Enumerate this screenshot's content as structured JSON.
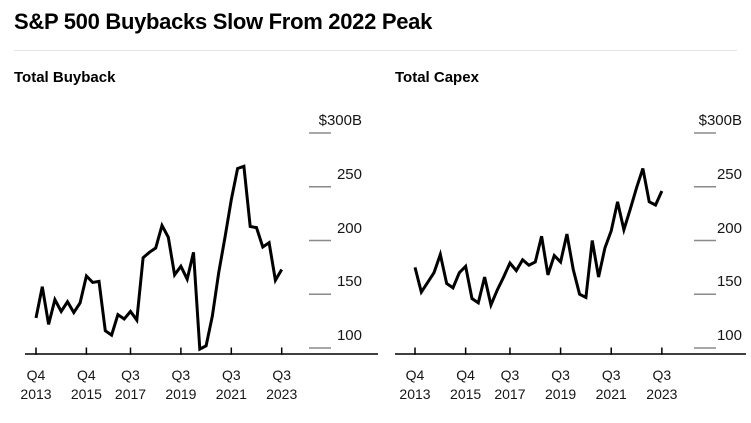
{
  "title": "S&P 500 Buybacks Slow From 2022 Peak",
  "background_color": "#ffffff",
  "line_color": "#000000",
  "axis_color": "#000000",
  "y_tick_dash_color": "#8a8a8a",
  "chart_data": [
    {
      "type": "line",
      "title": "Total Buyback",
      "unit": "billions USD",
      "ylim": [
        90,
        315
      ],
      "grid": false,
      "legend": "none",
      "y_axis_side": "right",
      "y_ticks": [
        {
          "value": 300,
          "label": "$300B"
        },
        {
          "value": 250,
          "label": "250"
        },
        {
          "value": 200,
          "label": "200"
        },
        {
          "value": 150,
          "label": "150"
        },
        {
          "value": 100,
          "label": "100"
        }
      ],
      "x_ticks": [
        {
          "index": 0,
          "quarter": "Q4",
          "year": "2013"
        },
        {
          "index": 8,
          "quarter": "Q4",
          "year": "2015"
        },
        {
          "index": 15,
          "quarter": "Q3",
          "year": "2017"
        },
        {
          "index": 23,
          "quarter": "Q3",
          "year": "2019"
        },
        {
          "index": 31,
          "quarter": "Q3",
          "year": "2021"
        },
        {
          "index": 39,
          "quarter": "Q3",
          "year": "2023"
        }
      ],
      "x": [
        "Q4 2013",
        "Q1 2014",
        "Q2 2014",
        "Q3 2014",
        "Q4 2014",
        "Q1 2015",
        "Q2 2015",
        "Q3 2015",
        "Q4 2015",
        "Q1 2016",
        "Q2 2016",
        "Q3 2016",
        "Q4 2016",
        "Q1 2017",
        "Q2 2017",
        "Q3 2017",
        "Q4 2017",
        "Q1 2018",
        "Q2 2018",
        "Q3 2018",
        "Q4 2018",
        "Q1 2019",
        "Q2 2019",
        "Q3 2019",
        "Q4 2019",
        "Q1 2020",
        "Q2 2020",
        "Q3 2020",
        "Q4 2020",
        "Q1 2021",
        "Q2 2021",
        "Q3 2021",
        "Q4 2021",
        "Q1 2022",
        "Q2 2022",
        "Q3 2022",
        "Q4 2022",
        "Q1 2023",
        "Q2 2023",
        "Q3 2023"
      ],
      "values": [
        128,
        157,
        122,
        145,
        134,
        143,
        133,
        142,
        167,
        161,
        162,
        116,
        112,
        131,
        127,
        134,
        126,
        184,
        189,
        193,
        214,
        203,
        168,
        176,
        164,
        189,
        99,
        102,
        130,
        170,
        203,
        238,
        267,
        269,
        213,
        212,
        194,
        198,
        163,
        173
      ]
    },
    {
      "type": "line",
      "title": "Total Capex",
      "unit": "billions USD",
      "ylim": [
        90,
        315
      ],
      "grid": false,
      "legend": "none",
      "y_axis_side": "right",
      "y_ticks": [
        {
          "value": 300,
          "label": "$300B"
        },
        {
          "value": 250,
          "label": "250"
        },
        {
          "value": 200,
          "label": "200"
        },
        {
          "value": 150,
          "label": "150"
        },
        {
          "value": 100,
          "label": "100"
        }
      ],
      "x_ticks": [
        {
          "index": 0,
          "quarter": "Q4",
          "year": "2013"
        },
        {
          "index": 8,
          "quarter": "Q4",
          "year": "2015"
        },
        {
          "index": 15,
          "quarter": "Q3",
          "year": "2017"
        },
        {
          "index": 23,
          "quarter": "Q3",
          "year": "2019"
        },
        {
          "index": 31,
          "quarter": "Q3",
          "year": "2021"
        },
        {
          "index": 39,
          "quarter": "Q3",
          "year": "2023"
        }
      ],
      "x": [
        "Q4 2013",
        "Q1 2014",
        "Q2 2014",
        "Q3 2014",
        "Q4 2014",
        "Q1 2015",
        "Q2 2015",
        "Q3 2015",
        "Q4 2015",
        "Q1 2016",
        "Q2 2016",
        "Q3 2016",
        "Q4 2016",
        "Q1 2017",
        "Q2 2017",
        "Q3 2017",
        "Q4 2017",
        "Q1 2018",
        "Q2 2018",
        "Q3 2018",
        "Q4 2018",
        "Q1 2019",
        "Q2 2019",
        "Q3 2019",
        "Q4 2019",
        "Q1 2020",
        "Q2 2020",
        "Q3 2020",
        "Q4 2020",
        "Q1 2021",
        "Q2 2021",
        "Q3 2021",
        "Q4 2021",
        "Q1 2022",
        "Q2 2022",
        "Q3 2022",
        "Q4 2022",
        "Q1 2023",
        "Q2 2023",
        "Q3 2023"
      ],
      "values": [
        175,
        152,
        161,
        170,
        187,
        160,
        156,
        170,
        176,
        146,
        142,
        166,
        140,
        154,
        166,
        179,
        172,
        182,
        177,
        180,
        204,
        168,
        186,
        180,
        206,
        173,
        150,
        147,
        200,
        166,
        193,
        209,
        236,
        210,
        229,
        249,
        267,
        236,
        233,
        246
      ]
    }
  ]
}
